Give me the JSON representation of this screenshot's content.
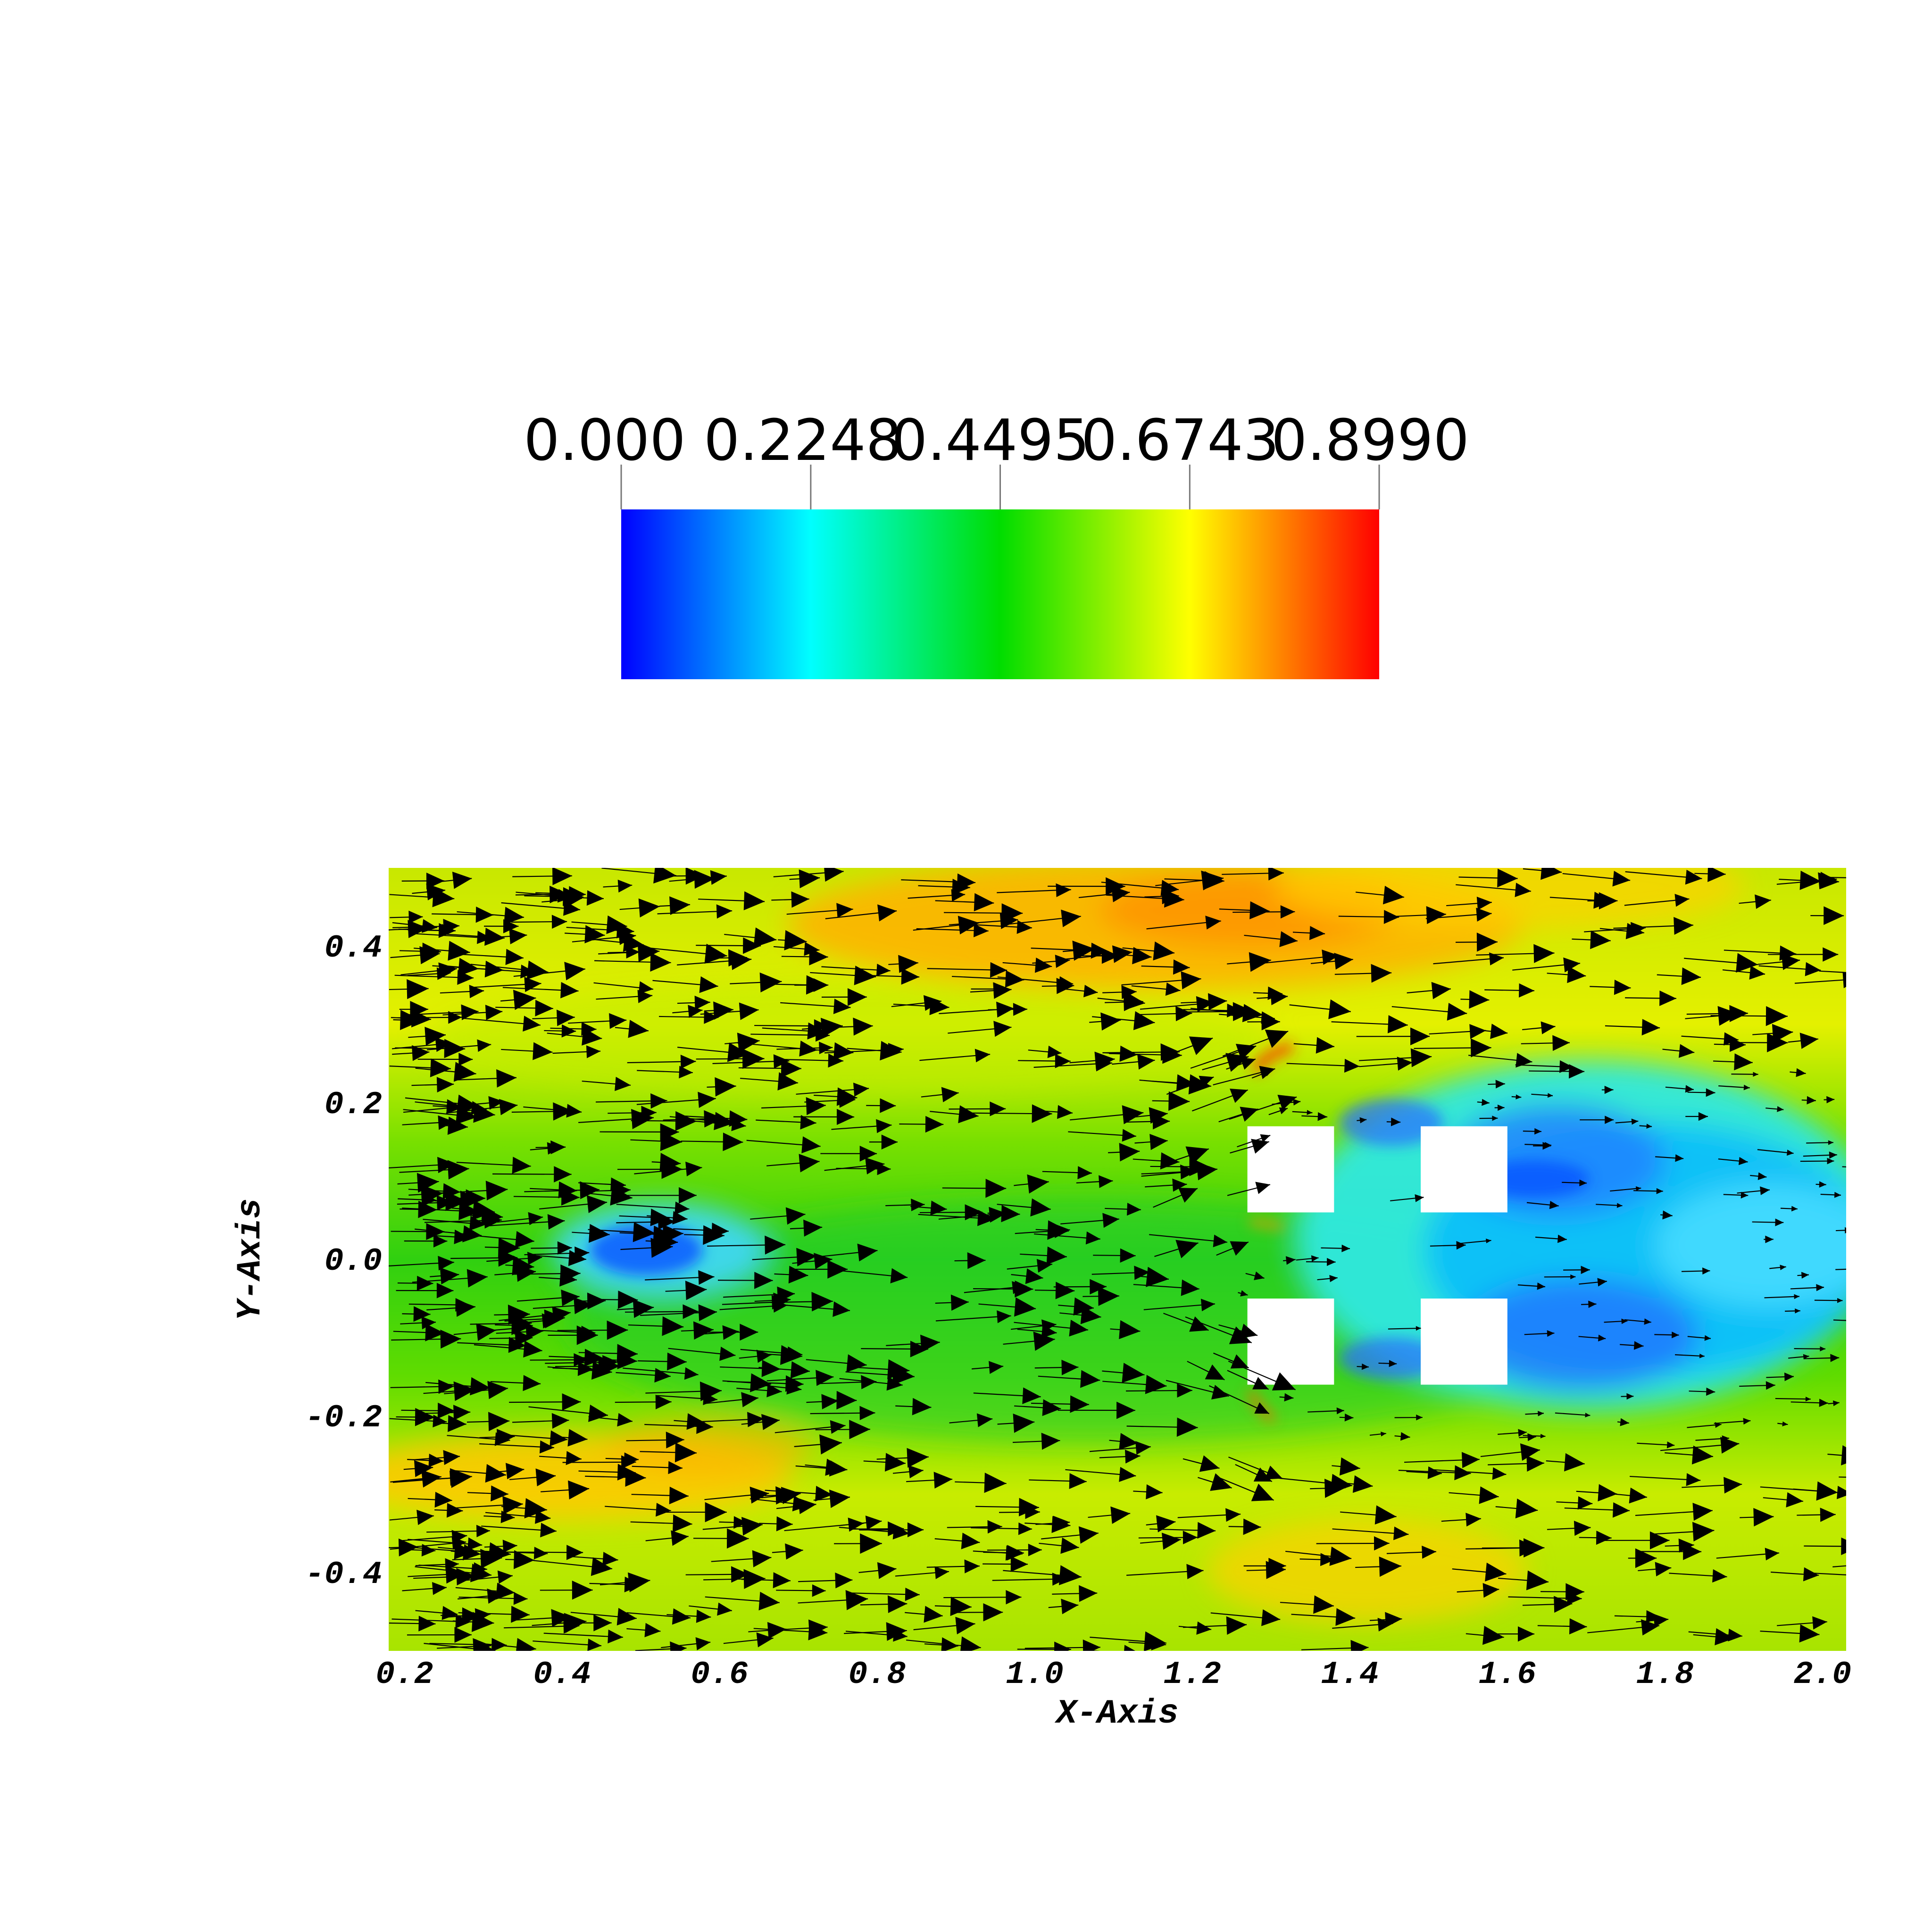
{
  "chart_data": {
    "type": "heatmap",
    "title": "",
    "xlabel": "X-Axis",
    "ylabel": "Y-Axis",
    "xlim": [
      0.18,
      2.03
    ],
    "ylim": [
      -0.5,
      0.5
    ],
    "x_ticks": [
      "0.2",
      "0.4",
      "0.6",
      "0.8",
      "1.0",
      "1.2",
      "1.4",
      "1.6",
      "1.8",
      "2.0"
    ],
    "y_ticks": [
      "0.4",
      "0.2",
      "0.0",
      "-0.2",
      "-0.4"
    ],
    "colorbar": {
      "labels": [
        "0.000",
        "0.2248",
        "0.4495",
        "0.6743",
        "0.8990"
      ],
      "min": 0.0,
      "max": 0.899,
      "colormap": [
        "#0000ff",
        "#00ffff",
        "#00dd00",
        "#ffff00",
        "#ff0000"
      ]
    },
    "obstacles": [
      {
        "x": [
          1.27,
          1.38
        ],
        "y": [
          0.06,
          0.17
        ]
      },
      {
        "x": [
          1.49,
          1.6
        ],
        "y": [
          0.06,
          0.17
        ]
      },
      {
        "x": [
          1.27,
          1.38
        ],
        "y": [
          -0.16,
          -0.05
        ]
      },
      {
        "x": [
          1.49,
          1.6
        ],
        "y": [
          -0.16,
          -0.05
        ]
      }
    ],
    "features": [
      {
        "kind": "low-velocity region",
        "x": [
          0.4,
          0.65
        ],
        "y": [
          -0.05,
          0.05
        ]
      },
      {
        "kind": "low-velocity wake",
        "x": [
          1.22,
          2.03
        ],
        "y": [
          -0.22,
          0.25
        ]
      },
      {
        "kind": "high-velocity band",
        "x": [
          0.8,
          1.6
        ],
        "y": [
          0.3,
          0.5
        ]
      },
      {
        "kind": "high-velocity band",
        "x": [
          0.18,
          0.6
        ],
        "y": [
          -0.35,
          -0.22
        ]
      }
    ],
    "vectors": "velocity glyphs pointing mainly in +x direction"
  }
}
